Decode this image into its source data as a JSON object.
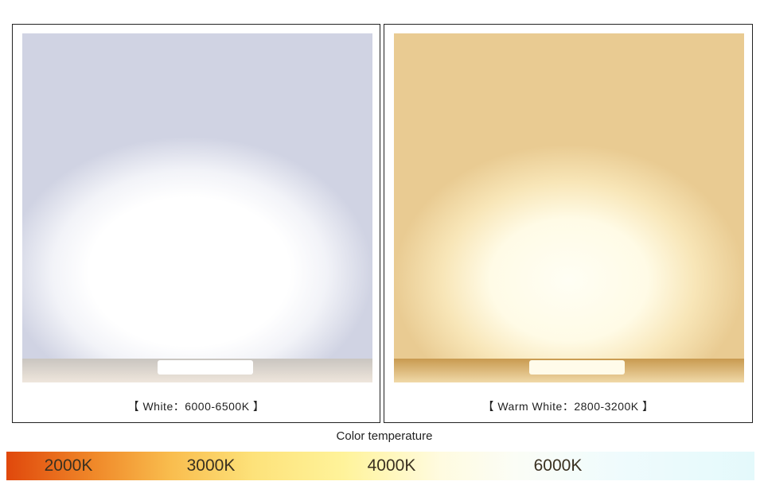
{
  "panels": [
    {
      "caption": "【 White：6000-6500K 】"
    },
    {
      "caption": "【 Warm White：2800-3200K 】"
    }
  ],
  "scale": {
    "title": "Color temperature",
    "labels": [
      "2000K",
      "3000K",
      "4000K",
      "6000K"
    ]
  }
}
